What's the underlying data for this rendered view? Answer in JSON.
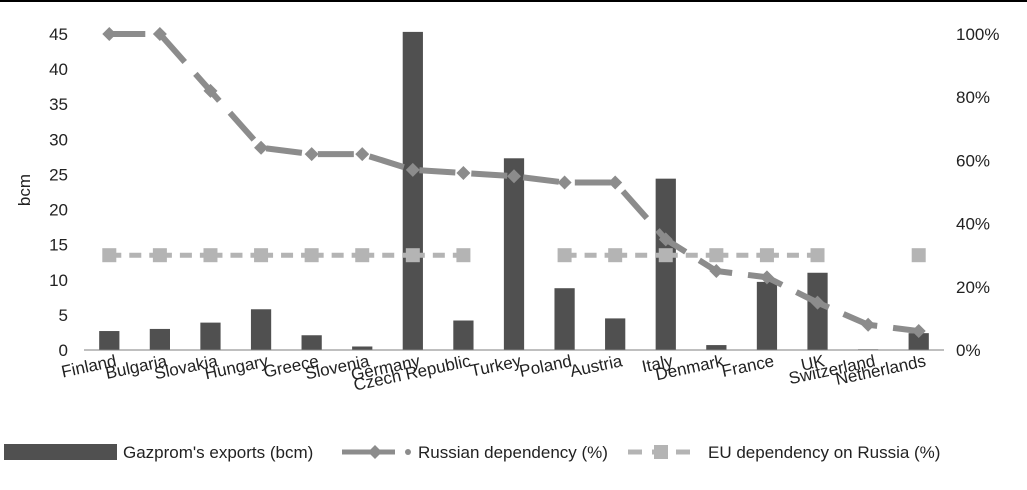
{
  "chart_data": {
    "type": "bar",
    "title": "",
    "xlabel": "",
    "ylabel": "bcm",
    "ylim": [
      0,
      45
    ],
    "y_ticks": [
      "0",
      "5",
      "10",
      "15",
      "20",
      "25",
      "30",
      "35",
      "40",
      "45"
    ],
    "y2lim": [
      0,
      100
    ],
    "y2_ticks": [
      "0%",
      "20%",
      "40%",
      "60%",
      "80%",
      "100%"
    ],
    "grid": false,
    "legend_position": "bottom",
    "categories": [
      "Finland",
      "Bulgaria",
      "Slovakia",
      "Hungary",
      "Greece",
      "Slovenia",
      "Germany",
      "Czech Republic",
      "Turkey",
      "Poland",
      "Austria",
      "Italy",
      "Denmark",
      "France",
      "UK",
      "Switzerland",
      "Netherlands"
    ],
    "series": [
      {
        "name": "Gazprom's exports (bcm)",
        "type": "bar",
        "axis": "left",
        "color": "#505050",
        "values": [
          2.7,
          3.0,
          3.9,
          5.8,
          2.1,
          0.5,
          45.3,
          4.2,
          27.3,
          8.8,
          4.5,
          24.4,
          0.7,
          9.7,
          11.0,
          0.1,
          2.4
        ]
      },
      {
        "name": "Russian dependency (%)",
        "type": "line",
        "axis": "right",
        "color": "#8c8c8c",
        "marker": "diamond",
        "values": [
          100,
          100,
          82,
          64,
          62,
          62,
          57,
          56,
          55,
          53,
          53,
          35,
          25,
          23,
          15,
          8,
          6
        ]
      },
      {
        "name": "EU dependency on Russia (%)",
        "type": "line",
        "axis": "right",
        "color": "#b4b4b4",
        "marker": "square",
        "dashed": true,
        "values": [
          30,
          30,
          30,
          30,
          30,
          30,
          30,
          30,
          null,
          30,
          30,
          30,
          30,
          30,
          30,
          null,
          30
        ]
      }
    ]
  }
}
